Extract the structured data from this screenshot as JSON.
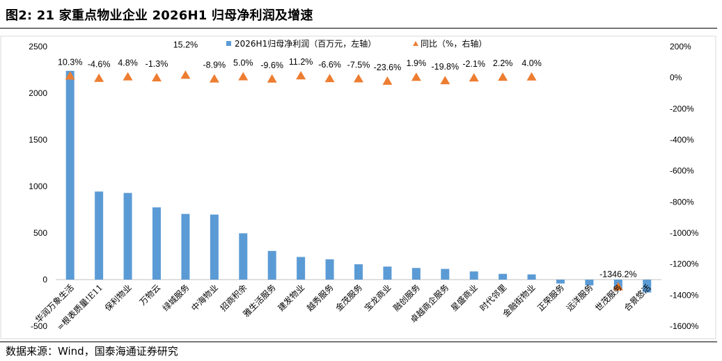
{
  "title": "图2:  21 家重点物业企业 2026H1 归母净利润及增速",
  "source": "数据来源：Wind，国泰海通证券研究",
  "chart_data": {
    "type": "bar",
    "categories": [
      "华润万象生活",
      "=根表质量!E11",
      "保利物业",
      "万物云",
      "绿城服务",
      "中海物业",
      "招商积余",
      "雅生活服务",
      "建发物业",
      "越秀服务",
      "金茂服务",
      "宝龙商业",
      "融创服务",
      "卓越商企服务",
      "星盛商业",
      "时代邻里",
      "金融街物业",
      "正荣服务",
      "远洋服务",
      "世茂服务",
      "合景悠活"
    ],
    "series": [
      {
        "name": "2026H1归母净利润（百万元，左轴）",
        "type": "bar",
        "axis": "left",
        "color": "#5B9BD5",
        "values": [
          2240,
          945,
          930,
          775,
          705,
          698,
          497,
          308,
          243,
          218,
          165,
          140,
          125,
          115,
          88,
          62,
          56,
          -42,
          -62,
          -110,
          -138
        ]
      },
      {
        "name": "同比（%，右轴）",
        "type": "scatter",
        "axis": "right",
        "color": "#ED7D31",
        "marker": "triangle",
        "values": [
          10.3,
          -4.6,
          4.8,
          -1.3,
          15.2,
          -8.9,
          5.0,
          -9.6,
          11.2,
          -6.6,
          -7.5,
          -23.6,
          1.9,
          -19.8,
          -2.1,
          2.2,
          4.0,
          null,
          null,
          -1346.2,
          null
        ],
        "labels": [
          "10.3%",
          "-4.6%",
          "4.8%",
          "-1.3%",
          "15.2%",
          "-8.9%",
          "5.0%",
          "-9.6%",
          "11.2%",
          "-6.6%",
          "-7.5%",
          "-23.6%",
          "1.9%",
          "-19.8%",
          "-2.1%",
          "2.2%",
          "4.0%",
          "",
          "",
          "-1346.2%",
          ""
        ]
      }
    ],
    "y_left": {
      "min": -500,
      "max": 2500,
      "ticks": [
        "2500",
        "2000",
        "1500",
        "1000",
        "500",
        "0",
        "-500"
      ]
    },
    "y_right": {
      "min": -1600,
      "max": 200,
      "ticks": [
        "200%",
        "0%",
        "-200%",
        "-400%",
        "-600%",
        "-800%",
        "-1000%",
        "-1200%",
        "-1400%",
        "-1600%"
      ]
    },
    "legend_position": "top-center",
    "grid": false
  }
}
